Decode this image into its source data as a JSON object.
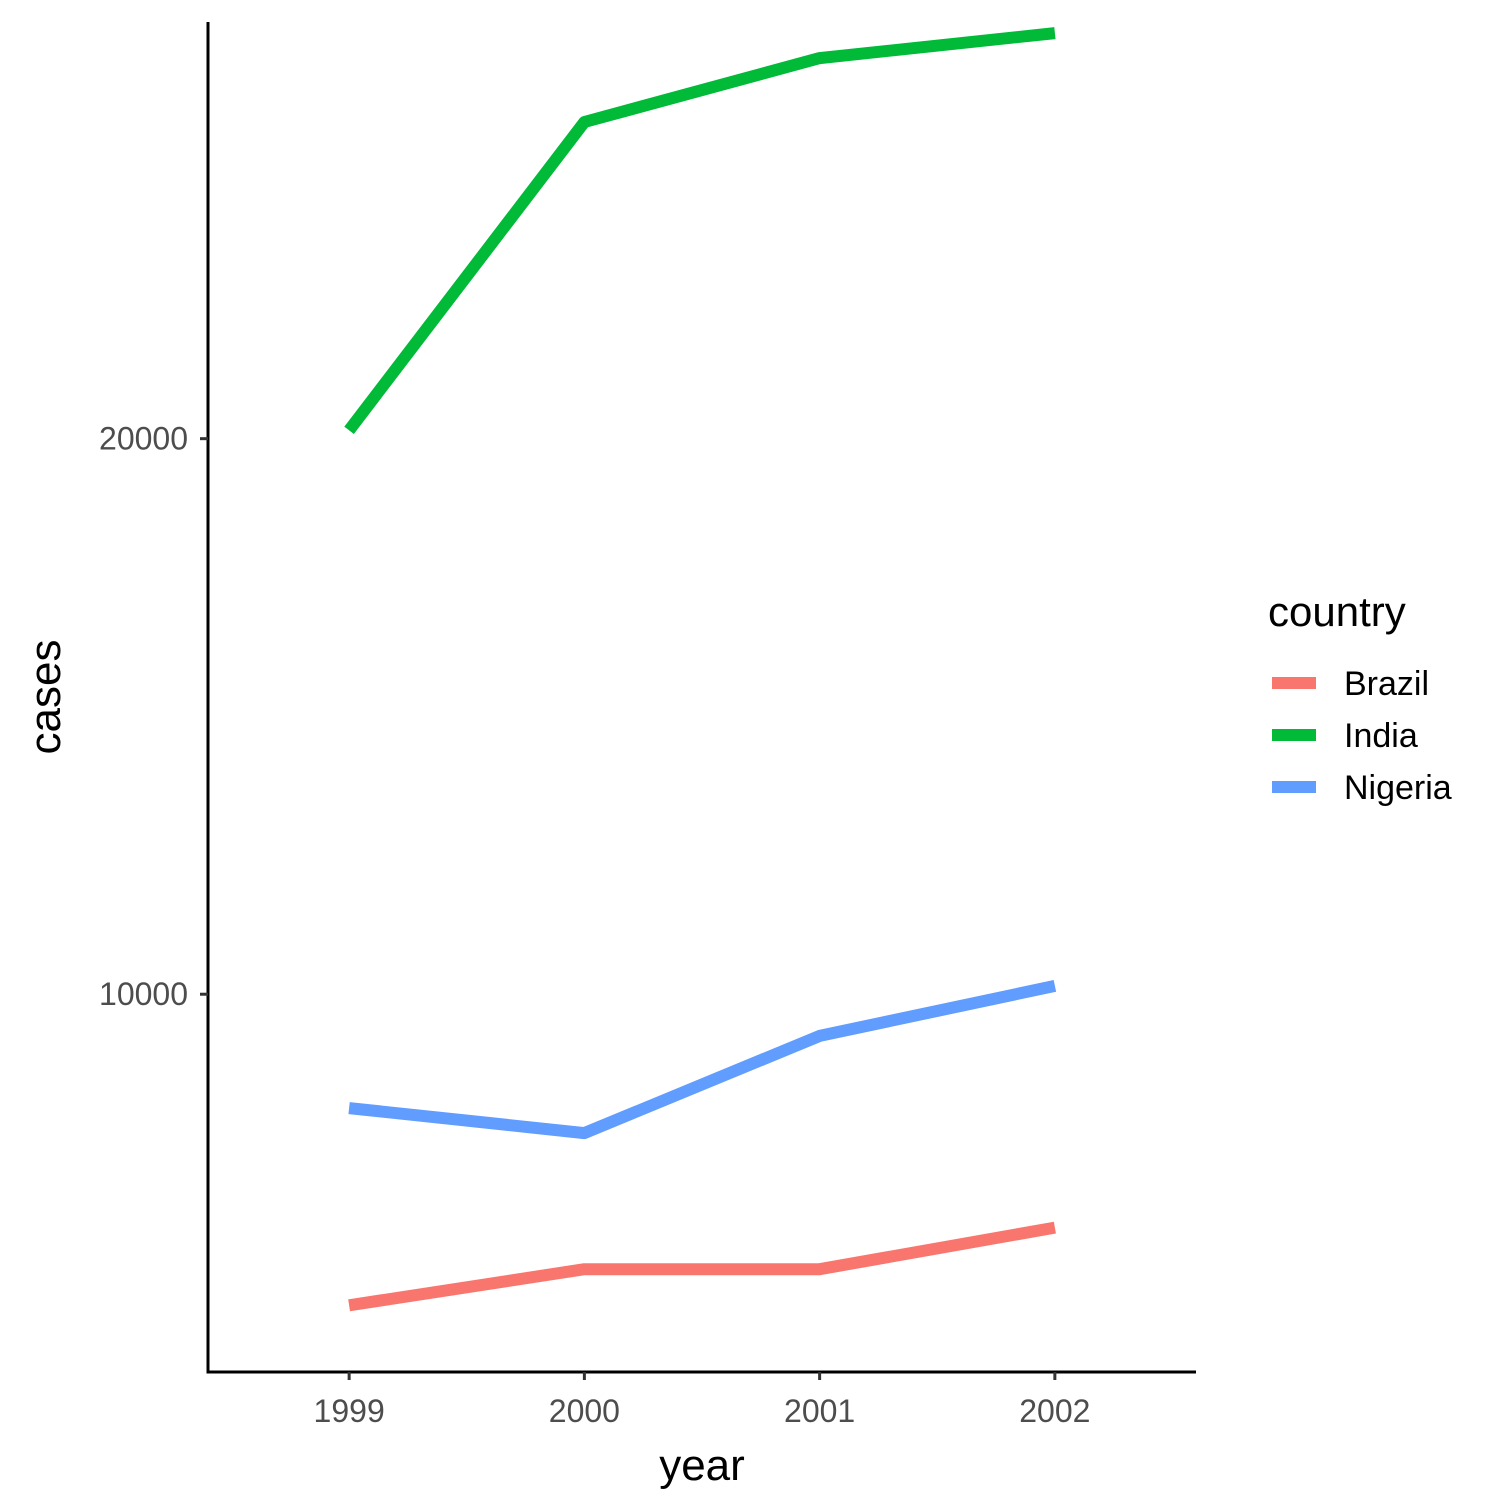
{
  "chart_data": {
    "type": "line",
    "x": [
      1999,
      2000,
      2001,
      2002
    ],
    "x_tick_labels": [
      "1999",
      "2000",
      "2001",
      "2002"
    ],
    "xlim": [
      1998.4,
      2002.6
    ],
    "y_ticks": [
      10000,
      20000
    ],
    "y_tick_labels": [
      "10000",
      "20000"
    ],
    "ylim": [
      3200,
      27500
    ],
    "xlabel": "year",
    "ylabel": "cases",
    "grid": false,
    "legend": {
      "title": "country",
      "position": "right"
    },
    "series": [
      {
        "name": "Brazil",
        "color": "#F8766D",
        "values": [
          4400,
          5050,
          5050,
          5800
        ]
      },
      {
        "name": "India",
        "color": "#00BA38",
        "values": [
          20150,
          25700,
          26850,
          27300
        ]
      },
      {
        "name": "Nigeria",
        "color": "#619CFF",
        "values": [
          7950,
          7500,
          9250,
          10150
        ]
      }
    ]
  }
}
